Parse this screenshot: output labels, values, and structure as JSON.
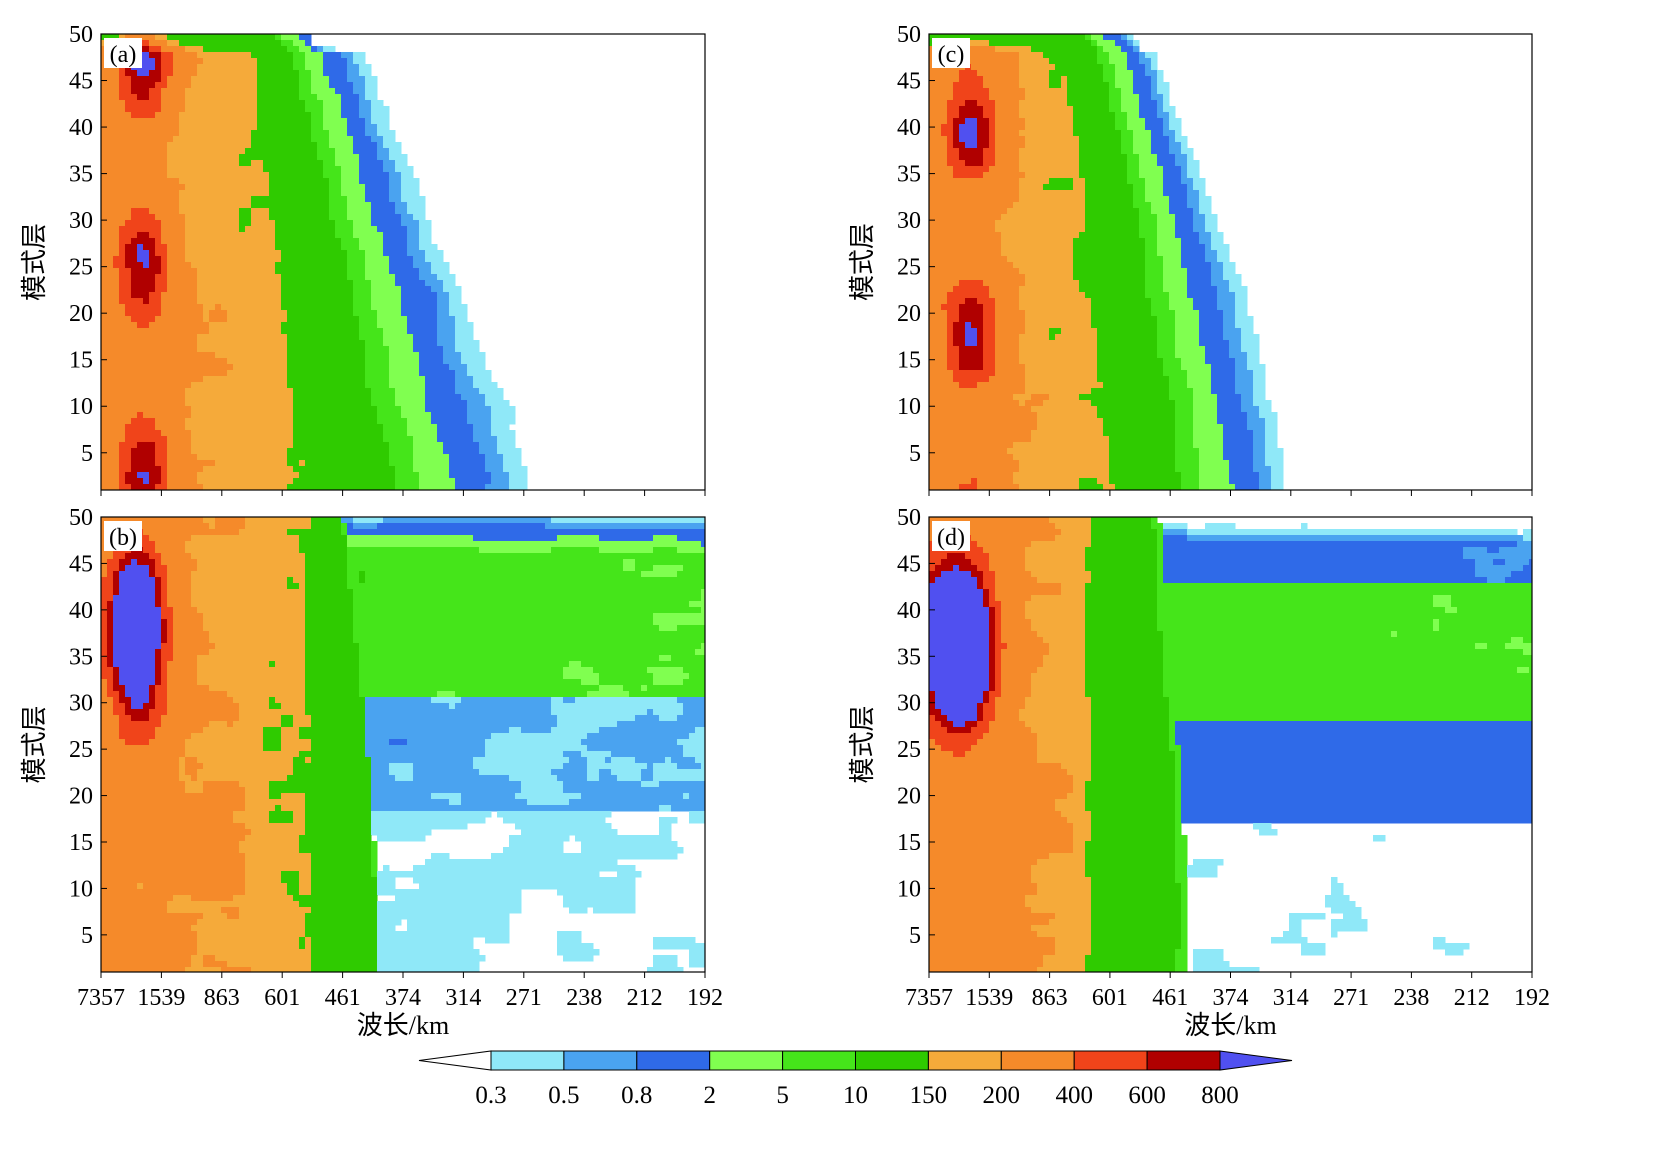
{
  "chart_data": [
    {
      "type": "heatmap",
      "panel_label": "(a)",
      "ylabel": "模式层",
      "xlabel": "",
      "y_ticks": [
        5,
        10,
        15,
        20,
        25,
        30,
        35,
        40,
        45,
        50
      ],
      "x_ticks": [],
      "ylim": [
        1,
        50
      ],
      "contour_levels": [
        0.3,
        0.5,
        0.8,
        2,
        5,
        10,
        150,
        200,
        400,
        600,
        800
      ],
      "x_boundary_wavelength_km": [
        {
          "level": 0.3,
          "y": [
            [
              1,
              271
            ],
            [
              5,
              271
            ],
            [
              10,
              271
            ],
            [
              15,
              280
            ],
            [
              20,
              296
            ],
            [
              25,
              318
            ],
            [
              30,
              340
            ],
            [
              35,
              355
            ],
            [
              40,
              380
            ],
            [
              45,
              410
            ],
            [
              50,
              430
            ]
          ]
        },
        {
          "level": 0.5,
          "y": [
            [
              1,
              292
            ],
            [
              5,
              292
            ],
            [
              10,
              296
            ],
            [
              15,
              305
            ],
            [
              20,
              318
            ],
            [
              25,
              335
            ],
            [
              30,
              352
            ],
            [
              35,
              368
            ],
            [
              40,
              390
            ],
            [
              45,
              420
            ],
            [
              50,
              450
            ]
          ]
        },
        {
          "level": 0.8,
          "y": [
            [
              1,
              305
            ],
            [
              5,
              305
            ],
            [
              10,
              310
            ],
            [
              15,
              318
            ],
            [
              20,
              330
            ],
            [
              25,
              345
            ],
            [
              30,
              365
            ],
            [
              35,
              378
            ],
            [
              40,
              400
            ],
            [
              45,
              430
            ],
            [
              50,
              470
            ]
          ]
        },
        {
          "level": 2,
          "y": [
            [
              1,
              330
            ],
            [
              5,
              330
            ],
            [
              10,
              335
            ],
            [
              15,
              345
            ],
            [
              20,
              355
            ],
            [
              25,
              370
            ],
            [
              30,
              395
            ],
            [
              35,
              410
            ],
            [
              40,
              440
            ],
            [
              45,
              470
            ],
            [
              50,
              520
            ]
          ]
        },
        {
          "level": 5,
          "y": [
            [
              1,
              370
            ],
            [
              5,
              372
            ],
            [
              10,
              380
            ],
            [
              15,
              390
            ],
            [
              20,
              405
            ],
            [
              25,
              425
            ],
            [
              30,
              450
            ],
            [
              35,
              470
            ],
            [
              40,
              500
            ],
            [
              45,
              540
            ],
            [
              50,
              590
            ]
          ]
        },
        {
          "level": 10,
          "y": [
            [
              1,
              420
            ],
            [
              5,
              420
            ],
            [
              10,
              425
            ],
            [
              15,
              440
            ],
            [
              20,
              460
            ],
            [
              25,
              480
            ],
            [
              30,
              510
            ],
            [
              35,
              540
            ],
            [
              40,
              560
            ],
            [
              45,
              600
            ],
            [
              50,
              640
            ]
          ]
        },
        {
          "level": 150,
          "y": [
            [
              1,
              520
            ],
            [
              5,
              525
            ],
            [
              10,
              530
            ],
            [
              15,
              545
            ],
            [
              20,
              560
            ],
            [
              25,
              580
            ],
            [
              30,
              600
            ],
            [
              35,
              640
            ],
            [
              40,
              680
            ],
            [
              45,
              720
            ],
            [
              50,
              760
            ]
          ]
        },
        {
          "level": 200,
          "y": [
            [
              1,
              1300
            ],
            [
              5,
              1300
            ],
            [
              10,
              1280
            ],
            [
              15,
              1250
            ],
            [
              20,
              1200
            ],
            [
              25,
              1200
            ],
            [
              30,
              1150
            ],
            [
              35,
              1100
            ],
            [
              40,
              1050
            ],
            [
              45,
              1000
            ],
            [
              50,
              950
            ]
          ]
        }
      ]
    },
    {
      "type": "heatmap",
      "panel_label": "(b)",
      "ylabel": "模式层",
      "xlabel": "波长/km",
      "x_ticks": [
        "7357",
        "1539",
        "863",
        "601",
        "461",
        "374",
        "314",
        "271",
        "238",
        "212",
        "192"
      ],
      "y_ticks": [
        5,
        10,
        15,
        20,
        25,
        30,
        35,
        40,
        45,
        50
      ],
      "ylim": [
        1,
        50
      ],
      "contour_levels": [
        0.3,
        0.5,
        0.8,
        2,
        5,
        10,
        150,
        200,
        400,
        600,
        800
      ]
    },
    {
      "type": "heatmap",
      "panel_label": "(c)",
      "ylabel": "模式层",
      "xlabel": "",
      "y_ticks": [
        5,
        10,
        15,
        20,
        25,
        30,
        35,
        40,
        45,
        50
      ],
      "x_ticks": [],
      "ylim": [
        1,
        50
      ],
      "contour_levels": [
        0.3,
        0.5,
        0.8,
        2,
        5,
        10,
        150,
        200,
        400,
        600,
        800
      ]
    },
    {
      "type": "heatmap",
      "panel_label": "(d)",
      "ylabel": "模式层",
      "xlabel": "波长/km",
      "x_ticks": [
        "7357",
        "1539",
        "863",
        "601",
        "461",
        "374",
        "314",
        "271",
        "238",
        "212",
        "192"
      ],
      "y_ticks": [
        5,
        10,
        15,
        20,
        25,
        30,
        35,
        40,
        45,
        50
      ],
      "ylim": [
        1,
        50
      ],
      "contour_levels": [
        0.3,
        0.5,
        0.8,
        2,
        5,
        10,
        150,
        200,
        400,
        600,
        800
      ]
    }
  ],
  "colorbar": {
    "labels": [
      "0.3",
      "0.5",
      "0.8",
      "2",
      "5",
      "10",
      "150",
      "200",
      "400",
      "600",
      "800"
    ],
    "colors": [
      "#ffffff",
      "#8fe8f8",
      "#4aa3f0",
      "#2f6ae8",
      "#80ff50",
      "#45e51a",
      "#2fcb00",
      "#f5aa3a",
      "#f58a2a",
      "#f0441a",
      "#b00000",
      "#5050f0"
    ]
  }
}
